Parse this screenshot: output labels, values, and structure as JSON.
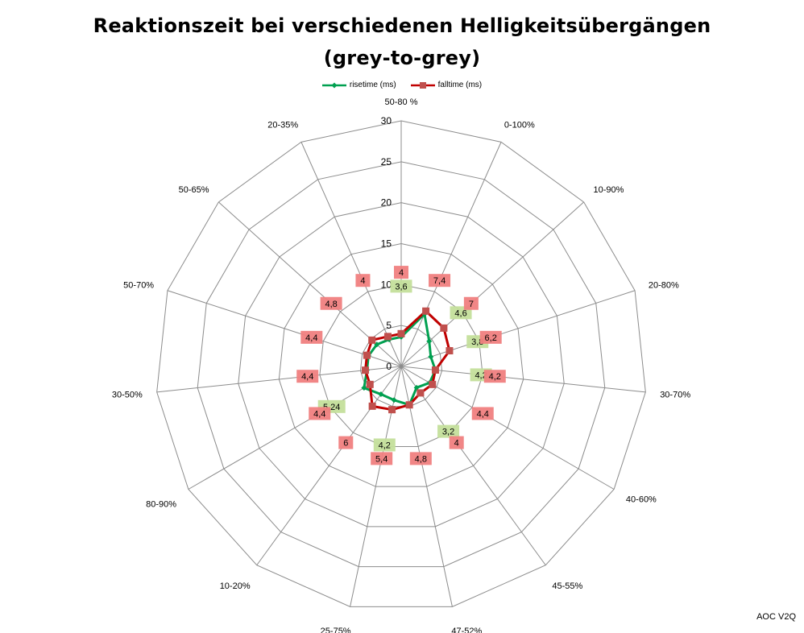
{
  "chart_title": "Reaktionszeit bei verschiedenen Helligkeitsübergängen\n(grey-to-grey)",
  "watermark": "AOC V2Q",
  "legend": [
    {
      "label": "risetime (ms)",
      "color": "#00a050"
    },
    {
      "label": "falltime (ms)",
      "color": "#c00000"
    }
  ],
  "chart_data": {
    "type": "radar",
    "title": "Reaktionszeit bei verschiedenen Helligkeitsübergängen\n(grey-to-grey)",
    "categories": [
      "50-80 %",
      "0-100%",
      "10-90%",
      "20-80%",
      "30-70%",
      "40-60%",
      "45-55%",
      "47-52%",
      "25-75%",
      "10-20%",
      "80-90%",
      "30-50%",
      "50-70%",
      "50-65%",
      "20-35%"
    ],
    "rlim": [
      0,
      30
    ],
    "ticks": [
      0,
      5,
      10,
      15,
      20,
      25,
      30
    ],
    "tick_labels": [
      "0",
      "5",
      "10",
      "15",
      "20",
      "25",
      "30"
    ],
    "grid": true,
    "legend_position": "top",
    "series": [
      {
        "name": "risetime (ms)",
        "color": "#00a050",
        "label_bg": "#c4df9b",
        "values": [
          3.6,
          7.0,
          4.6,
          3.8,
          4.2,
          4.0,
          3.2,
          4.8,
          4.2,
          4.2,
          5.24,
          4.2,
          4.2,
          4.0,
          3.6
        ],
        "data_labels": [
          "3,6",
          "",
          "4,6",
          "3,8",
          "4,2",
          "",
          "3,2",
          "",
          "4,2",
          "",
          "5,24",
          "",
          "",
          "",
          ""
        ]
      },
      {
        "name": "falltime (ms)",
        "color": "#c00000",
        "label_bg": "#f08080",
        "values": [
          4.0,
          7.4,
          7.0,
          6.2,
          4.2,
          4.4,
          4.0,
          4.8,
          5.4,
          6.0,
          4.4,
          4.4,
          4.4,
          4.8,
          4.0
        ],
        "data_labels": [
          "4",
          "7,4",
          "7",
          "6,2",
          "4,2",
          "4,4",
          "4",
          "4,8",
          "5,4",
          "6",
          "4,4",
          "4,4",
          "4,4",
          "4,8",
          "4"
        ]
      }
    ]
  }
}
